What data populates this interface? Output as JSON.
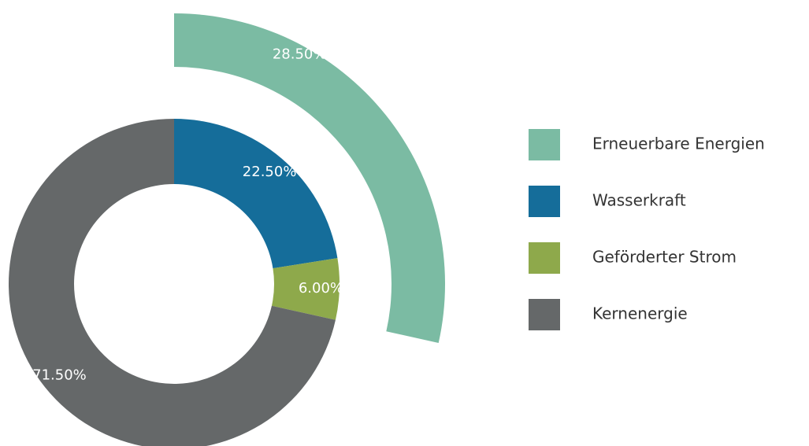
{
  "chart_data": {
    "type": "pie",
    "categories": [
      "Erneuerbare Energien",
      "Wasserkraft",
      "Geförderter Strom",
      "Kernenergie"
    ],
    "values": [
      28.5,
      22.5,
      6,
      71.5
    ],
    "value_labels": [
      "28.50%",
      "22.50%",
      "6.00%",
      "71.50%"
    ],
    "colors": [
      "#7bbba3",
      "#156d9a",
      "#8ea94b",
      "#656869"
    ],
    "ring": [
      "outer",
      "inner",
      "inner",
      "inner"
    ]
  }
}
